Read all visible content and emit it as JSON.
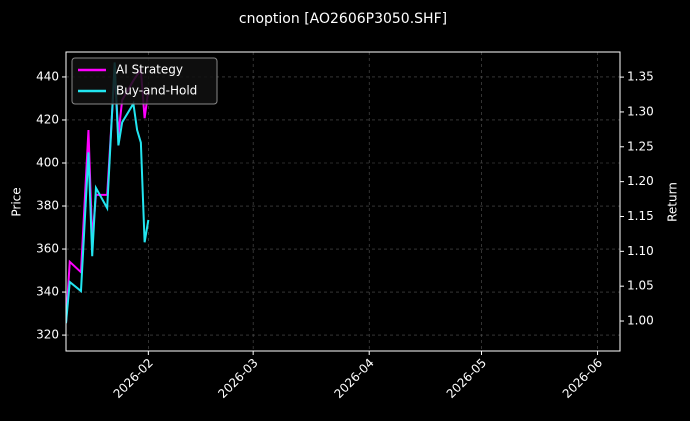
{
  "chart_data": {
    "type": "line",
    "title": "cnoption [AO2606P3050.SHF]",
    "y_label": "Price",
    "y2_label": "Return",
    "x": [
      "2026-01-10",
      "2026-01-11",
      "2026-01-14",
      "2026-01-16",
      "2026-01-17",
      "2026-01-18",
      "2026-01-21",
      "2026-01-23",
      "2026-01-24",
      "2026-01-25",
      "2026-01-28",
      "2026-01-29",
      "2026-01-30",
      "2026-01-31",
      "2026-02-01"
    ],
    "xlim": [
      "2026-01-10",
      "2026-06-07"
    ],
    "xticks": [
      "2026-02",
      "2026-03",
      "2026-04",
      "2026-05",
      "2026-06"
    ],
    "ylim": [
      312.6,
      451.6
    ],
    "yticks": [
      320,
      340,
      360,
      380,
      400,
      420,
      440
    ],
    "y2lim": [
      0.957,
      1.386
    ],
    "y2ticks": [
      {
        "value": 1.0,
        "label": "1.00"
      },
      {
        "value": 1.05,
        "label": "1.05"
      },
      {
        "value": 1.1,
        "label": "1.10"
      },
      {
        "value": 1.15,
        "label": "1.15"
      },
      {
        "value": 1.2,
        "label": "1.20"
      },
      {
        "value": 1.25,
        "label": "1.25"
      },
      {
        "value": 1.3,
        "label": "1.30"
      },
      {
        "value": 1.35,
        "label": "1.35"
      }
    ],
    "grid": true,
    "legend": "upper left",
    "series": [
      {
        "name": "AI Strategy",
        "color": "#ff00ff",
        "axis": "y2",
        "values": [
          0.997,
          1.085,
          1.07,
          1.274,
          1.116,
          1.181,
          1.181,
          1.36,
          1.267,
          1.317,
          1.345,
          1.353,
          1.36,
          1.291,
          1.331
        ]
      },
      {
        "name": "Buy-and-Hold",
        "color": "#22e5f0",
        "axis": "y2",
        "values": [
          0.997,
          1.056,
          1.043,
          1.242,
          1.093,
          1.191,
          1.162,
          1.371,
          1.252,
          1.285,
          1.312,
          1.274,
          1.256,
          1.113,
          1.145
        ]
      }
    ]
  }
}
